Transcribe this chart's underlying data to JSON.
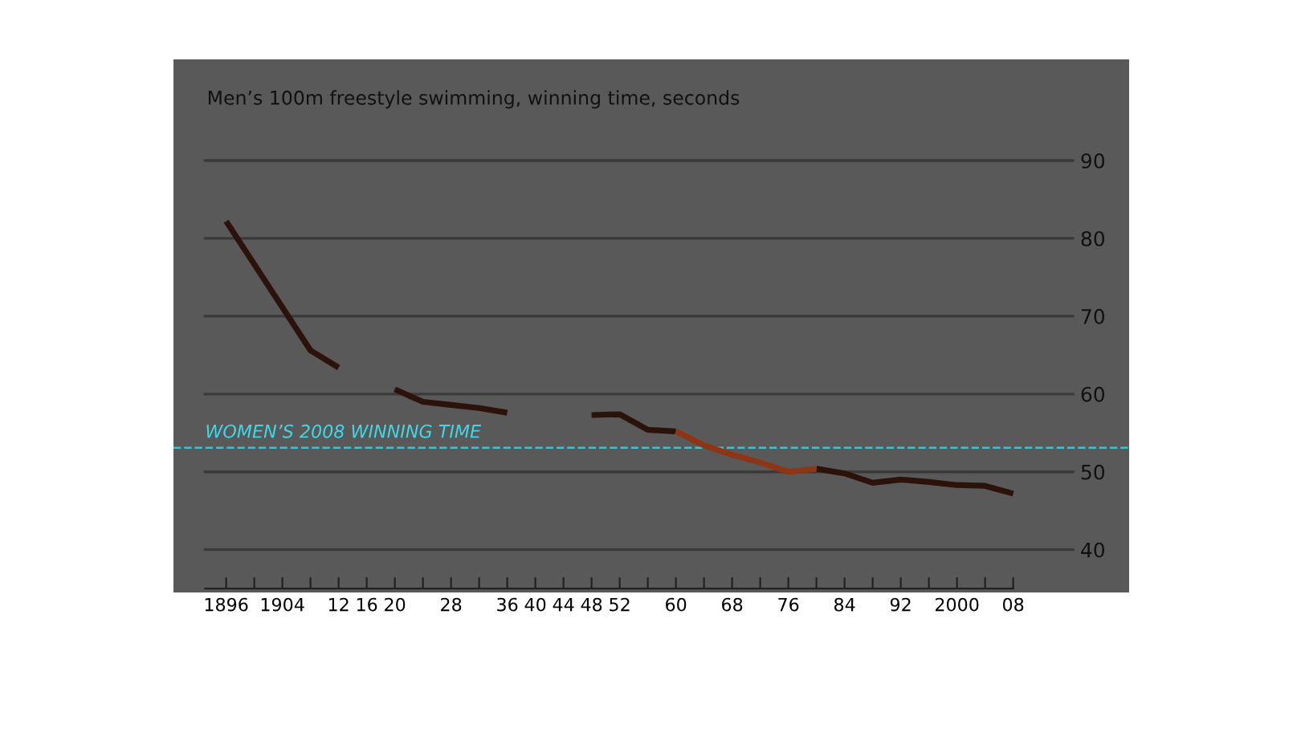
{
  "chart_data": {
    "type": "line",
    "title": "Men’s 100m freestyle swimming, winning time, seconds",
    "series": [
      {
        "color": "#2b120a",
        "x": [
          1896,
          1908,
          1912,
          1916,
          1920,
          1924,
          1928,
          1932,
          1936,
          1940,
          1944,
          1948,
          1952,
          1956,
          1960,
          1964,
          1968,
          1972,
          1976,
          1980,
          1984,
          1988,
          1992,
          1996,
          2000,
          2004,
          2008
        ],
        "values": [
          82.2,
          65.6,
          63.4,
          null,
          60.6,
          59.0,
          58.6,
          58.2,
          57.6,
          null,
          null,
          57.3,
          57.4,
          55.4,
          55.2,
          null,
          null,
          null,
          null,
          50.4,
          49.8,
          48.6,
          49.0,
          48.7,
          48.3,
          48.2,
          47.2
        ]
      },
      {
        "color": "#8e3516",
        "x": [
          1960,
          1964,
          1968,
          1972,
          1976,
          1980
        ],
        "values": [
          55.2,
          53.4,
          52.2,
          51.2,
          50.0,
          50.4
        ]
      }
    ],
    "xlim": [
      1888.5,
      2024.5
    ],
    "ylim": [
      34.5,
      103
    ],
    "xticks": [
      {
        "value": 1896,
        "label": "1896"
      },
      {
        "value": 1900,
        "label": null
      },
      {
        "value": 1904,
        "label": "1904"
      },
      {
        "value": 1908,
        "label": null
      },
      {
        "value": 1912,
        "label": "12"
      },
      {
        "value": 1916,
        "label": "16"
      },
      {
        "value": 1920,
        "label": "20"
      },
      {
        "value": 1924,
        "label": null
      },
      {
        "value": 1928,
        "label": "28"
      },
      {
        "value": 1932,
        "label": null
      },
      {
        "value": 1936,
        "label": "36"
      },
      {
        "value": 1940,
        "label": "40"
      },
      {
        "value": 1944,
        "label": "44"
      },
      {
        "value": 1948,
        "label": "48"
      },
      {
        "value": 1952,
        "label": "52"
      },
      {
        "value": 1956,
        "label": null
      },
      {
        "value": 1960,
        "label": "60"
      },
      {
        "value": 1964,
        "label": null
      },
      {
        "value": 1968,
        "label": "68"
      },
      {
        "value": 1972,
        "label": null
      },
      {
        "value": 1976,
        "label": "76"
      },
      {
        "value": 1980,
        "label": null
      },
      {
        "value": 1984,
        "label": "84"
      },
      {
        "value": 1988,
        "label": null
      },
      {
        "value": 1992,
        "label": "92"
      },
      {
        "value": 1996,
        "label": null
      },
      {
        "value": 2000,
        "label": "2000"
      },
      {
        "value": 2004,
        "label": null
      },
      {
        "value": 2008,
        "label": "08"
      }
    ],
    "yticks": [
      40,
      50,
      60,
      70,
      80,
      90
    ],
    "grid": "y",
    "marker": "none",
    "line_style": "solid",
    "ref_lines": [
      {
        "axis": "y",
        "value": 53.1,
        "label": "WOMEN’S 2008 WINNING TIME",
        "color": "#3fd8e8",
        "line_style": "dashed"
      }
    ]
  }
}
